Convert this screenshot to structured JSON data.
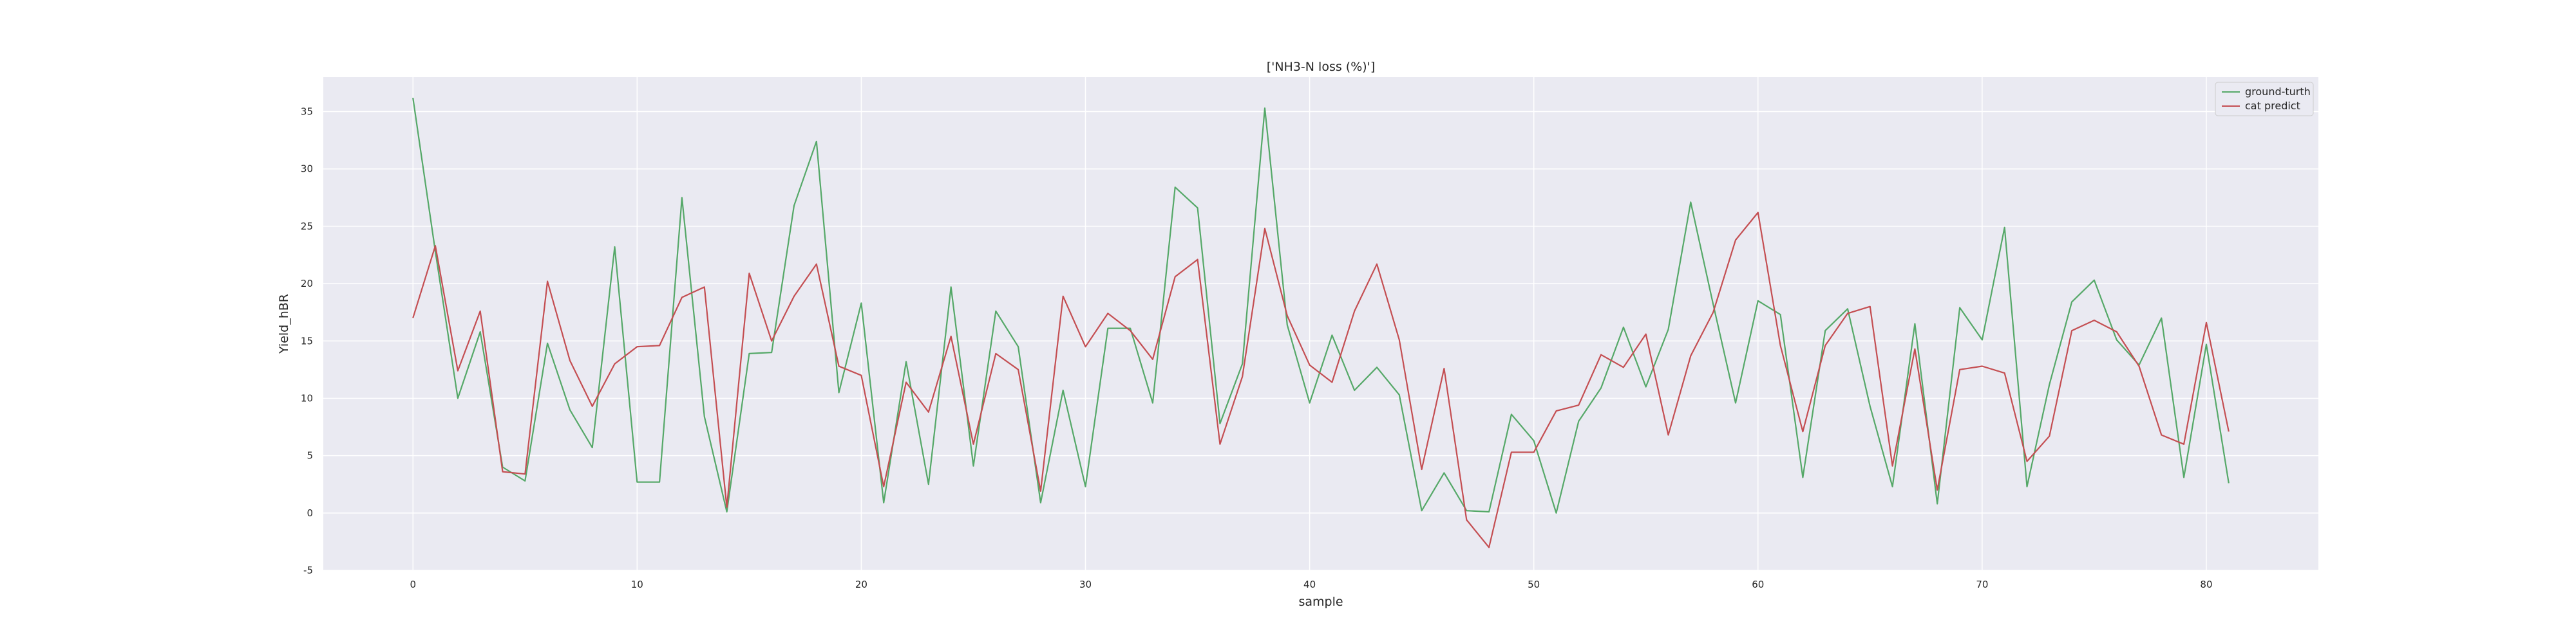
{
  "chart_data": {
    "type": "line",
    "title": "['NH3-N loss (%)']",
    "xlabel": "sample",
    "ylabel": "Yield_hBR",
    "xlim": [
      -4,
      85
    ],
    "ylim": [
      -5,
      38
    ],
    "x_ticks": [
      0,
      10,
      20,
      30,
      40,
      50,
      60,
      70,
      80
    ],
    "y_ticks": [
      -5,
      0,
      5,
      10,
      15,
      20,
      25,
      30,
      35
    ],
    "grid": true,
    "legend_position": "top-right",
    "series": [
      {
        "name": "ground-turth",
        "color": "#55a868",
        "values": [
          36.2,
          22.8,
          10.0,
          15.8,
          4.0,
          2.8,
          14.8,
          9.0,
          5.7,
          23.2,
          2.7,
          2.7,
          27.5,
          8.4,
          0.1,
          13.9,
          14.0,
          26.8,
          32.4,
          10.5,
          18.3,
          0.9,
          13.2,
          2.5,
          19.7,
          4.1,
          17.6,
          14.5,
          0.9,
          10.7,
          2.3,
          16.1,
          16.1,
          9.6,
          28.4,
          26.6,
          7.8,
          13.0,
          35.3,
          16.4,
          9.6,
          15.5,
          10.7,
          12.7,
          10.3,
          0.2,
          3.5,
          0.2,
          0.1,
          8.6,
          6.3,
          0.0,
          8.0,
          10.9,
          16.2,
          11.0,
          16.0,
          27.1,
          18.2,
          9.6,
          18.5,
          17.3,
          3.1,
          15.9,
          17.8,
          9.3,
          2.3,
          16.5,
          0.8,
          17.9,
          15.1,
          24.9,
          2.3,
          11.2,
          18.4,
          20.3,
          15.1,
          12.9,
          17.0,
          3.1,
          14.7,
          2.6
        ]
      },
      {
        "name": "cat predict",
        "color": "#c44e52",
        "values": [
          17.0,
          23.3,
          12.4,
          17.6,
          3.6,
          3.4,
          20.2,
          13.3,
          9.3,
          13.0,
          14.5,
          14.6,
          18.8,
          19.7,
          0.5,
          20.9,
          15.0,
          18.9,
          21.7,
          12.8,
          12.0,
          2.3,
          11.4,
          8.8,
          15.4,
          6.0,
          13.9,
          12.5,
          1.9,
          18.9,
          14.5,
          17.4,
          15.9,
          13.4,
          20.6,
          22.1,
          6.0,
          11.9,
          24.8,
          17.2,
          12.9,
          11.4,
          17.6,
          21.7,
          15.1,
          3.8,
          12.6,
          -0.6,
          -3.0,
          5.3,
          5.3,
          8.9,
          9.4,
          13.8,
          12.7,
          15.6,
          6.8,
          13.7,
          17.5,
          23.8,
          26.2,
          14.6,
          7.1,
          14.6,
          17.4,
          18.0,
          4.1,
          14.3,
          2.0,
          12.5,
          12.8,
          12.2,
          4.5,
          6.7,
          15.9,
          16.8,
          15.8,
          12.8,
          6.8,
          6.0,
          16.6,
          7.1
        ]
      }
    ]
  }
}
